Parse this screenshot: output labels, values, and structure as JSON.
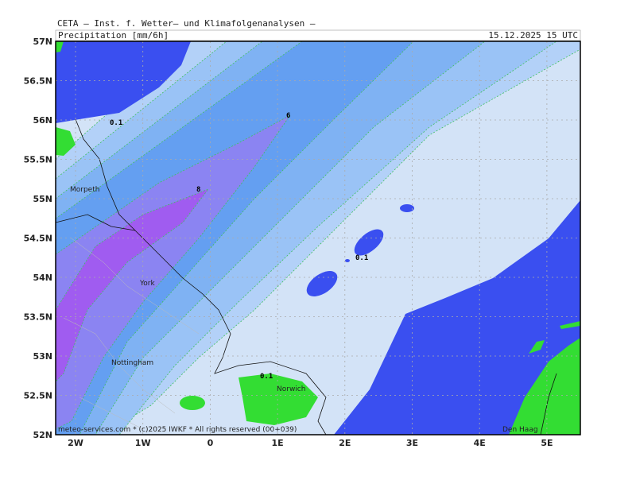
{
  "header": {
    "title": "CETA — Inst. f. Wetter— und Klimafolgenanalysen —",
    "product": "Precipitation [mm/6h]",
    "valid_time": "15.12.2025 15 UTC"
  },
  "axes": {
    "lat_labels": [
      "57N",
      "56.5N",
      "56N",
      "55.5N",
      "55N",
      "54.5N",
      "54N",
      "53.5N",
      "53N",
      "52.5N",
      "52N"
    ],
    "lon_labels": [
      "2W",
      "1W",
      "0",
      "1E",
      "2E",
      "3E",
      "4E",
      "5E"
    ]
  },
  "contour_labels": [
    "0.1",
    "6",
    "8",
    "0.1",
    "0.1"
  ],
  "places": [
    "Morpeth",
    "York",
    "Nottingham",
    "Norwich",
    "Den Haag"
  ],
  "footer": "meteo-services.com * (c)2025 IWKF * All rights reserved (00+039)"
}
